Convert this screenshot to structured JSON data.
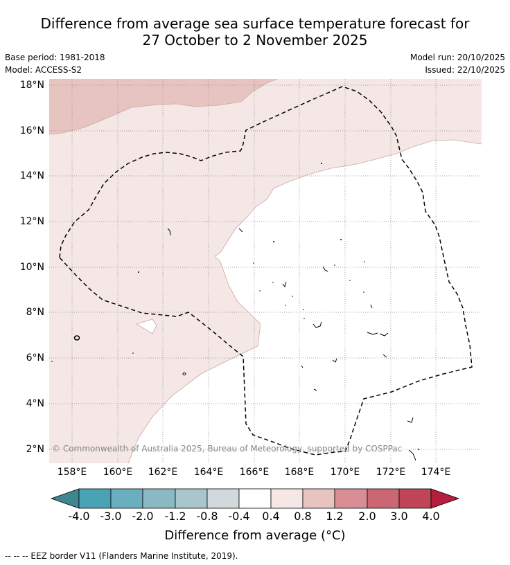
{
  "title": {
    "line1": "Difference from average sea surface temperature forecast for",
    "line2": "27 October to 2 November 2025"
  },
  "meta": {
    "base_period": "Base period: 1981-2018",
    "model": "Model: ACCESS-S2",
    "model_run": "Model run: 20/10/2025",
    "issued": "Issued: 22/10/2025"
  },
  "map": {
    "latitude_labels": [
      "18°N",
      "16°N",
      "14°N",
      "12°N",
      "10°N",
      "8°N",
      "6°N",
      "4°N",
      "2°N"
    ],
    "longitude_labels": [
      "158°E",
      "160°E",
      "162°E",
      "164°E",
      "166°E",
      "168°E",
      "170°E",
      "172°E",
      "174°E"
    ],
    "copyright": "© Commonwealth of Australia 2025, Bureau of Meteorology, supported by COSPPac",
    "colors": {
      "anomaly_0_4_0_8": "#f4e7e5",
      "anomaly_0_8_1_2": "#e8c4c1",
      "neutral": "#ffffff",
      "eez_line": "#000000"
    }
  },
  "colorbar": {
    "ticks": [
      "-4.0",
      "-3.0",
      "-2.0",
      "-1.2",
      "-0.8",
      "-0.4",
      "0.4",
      "0.8",
      "1.2",
      "2.0",
      "3.0",
      "4.0"
    ],
    "colors": [
      "#3f8790",
      "#4aa3b5",
      "#6aafbf",
      "#8ab9c4",
      "#a8c6cb",
      "#d1d9dc",
      "#ffffff",
      "#f4e7e5",
      "#e8c4c1",
      "#d98d94",
      "#cc6672",
      "#c04657",
      "#b51e3e"
    ],
    "label": "Difference from average (°C)"
  },
  "footer": {
    "legend": "--  --  -- EEZ border V11 (Flanders Marine Institute, 2019)."
  }
}
